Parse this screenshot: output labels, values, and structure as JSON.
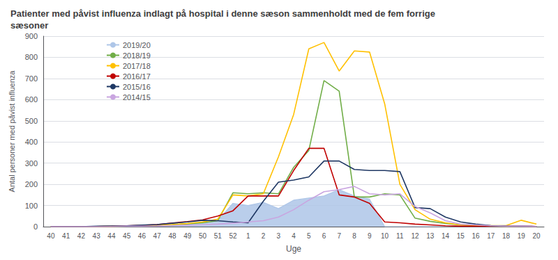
{
  "chart_data": {
    "type": "line",
    "title": "Patienter med påvist influenza indlagt på hospital i denne sæson sammenholdt med de fem forrige\nsæsoner",
    "x_label": "Uge",
    "y_label": "Antal personer med påvist influenza",
    "categories": [
      "40",
      "41",
      "42",
      "43",
      "44",
      "45",
      "46",
      "47",
      "48",
      "49",
      "50",
      "51",
      "52",
      "1",
      "2",
      "3",
      "4",
      "5",
      "6",
      "7",
      "8",
      "9",
      "10",
      "11",
      "12",
      "13",
      "14",
      "15",
      "16",
      "17",
      "18",
      "19",
      "20"
    ],
    "ylim": [
      0,
      900
    ],
    "yticks": [
      0,
      100,
      200,
      300,
      400,
      500,
      600,
      700,
      800,
      900
    ],
    "grid": true,
    "legend": "upper left",
    "series": [
      {
        "name": "2019/20",
        "type": "area",
        "color": "#aec6e8",
        "values": [
          0,
          0,
          0,
          1,
          2,
          3,
          4,
          6,
          9,
          13,
          18,
          28,
          110,
          100,
          115,
          85,
          125,
          135,
          145,
          175,
          145,
          130,
          0,
          0,
          0,
          0,
          0,
          0,
          0,
          0,
          0,
          0,
          0
        ]
      },
      {
        "name": "2018/19",
        "type": "line",
        "color": "#70ad47",
        "values": [
          0,
          0,
          0,
          1,
          2,
          3,
          4,
          6,
          9,
          13,
          18,
          28,
          160,
          155,
          160,
          155,
          280,
          360,
          690,
          640,
          140,
          140,
          155,
          150,
          40,
          25,
          15,
          8,
          4,
          2,
          1,
          1,
          0
        ]
      },
      {
        "name": "2017/18",
        "type": "line",
        "color": "#ffc000",
        "values": [
          0,
          0,
          0,
          1,
          2,
          3,
          4,
          7,
          10,
          15,
          22,
          35,
          150,
          145,
          155,
          330,
          530,
          840,
          870,
          735,
          830,
          825,
          580,
          200,
          80,
          35,
          18,
          8,
          5,
          5,
          5,
          30,
          12
        ]
      },
      {
        "name": "2016/17",
        "type": "line",
        "color": "#c00000",
        "values": [
          0,
          0,
          0,
          1,
          2,
          4,
          6,
          10,
          17,
          24,
          32,
          50,
          75,
          145,
          145,
          145,
          265,
          370,
          370,
          150,
          140,
          110,
          22,
          18,
          12,
          8,
          4,
          2,
          2,
          2,
          2,
          2,
          1
        ]
      },
      {
        "name": "2015/16",
        "type": "line",
        "color": "#1f3864",
        "values": [
          0,
          0,
          0,
          2,
          3,
          4,
          7,
          10,
          16,
          22,
          30,
          28,
          22,
          18,
          120,
          210,
          220,
          235,
          310,
          310,
          270,
          265,
          265,
          260,
          90,
          85,
          45,
          22,
          12,
          5,
          3,
          2,
          1
        ]
      },
      {
        "name": "2014/15",
        "type": "line",
        "color": "#c9a5e0",
        "values": [
          0,
          0,
          0,
          0,
          1,
          2,
          2,
          3,
          5,
          7,
          9,
          12,
          16,
          22,
          28,
          45,
          80,
          125,
          165,
          175,
          190,
          155,
          150,
          155,
          95,
          65,
          28,
          12,
          8,
          4,
          2,
          2,
          1
        ]
      }
    ]
  }
}
